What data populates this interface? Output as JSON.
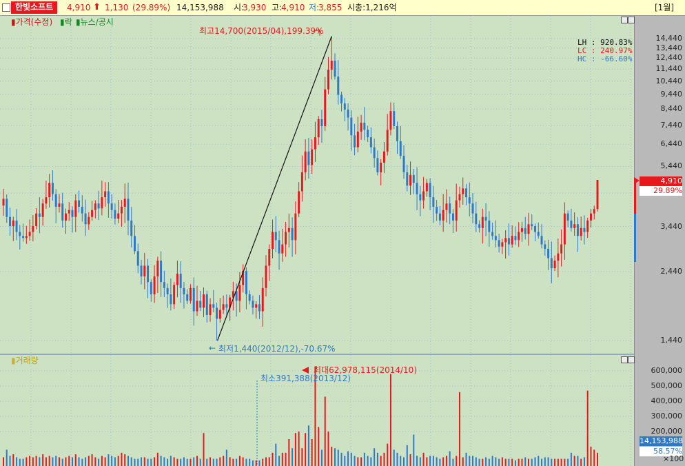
{
  "header": {
    "stock_name": "한빛소프트",
    "price": "4,910",
    "change_arrow": "up-arrow-icon",
    "change": "1,130",
    "change_pct": "(29.89%)",
    "volume": "14,153,988",
    "open_label": "시:",
    "open": "3,930",
    "high_label": "고:",
    "high": "4,910",
    "low_label": "저:",
    "low": "3,855",
    "mcap": "시총:1,216억",
    "period": "[1월]"
  },
  "colors": {
    "up": "#e8191e",
    "down": "#2d78c9",
    "panel_bg": "#cde2c3",
    "axis_bg": "#b9b9b9",
    "grid": "#9fc0d2",
    "titlebar": "#ffffcc",
    "name_bg": "#e8191e"
  },
  "price_panel": {
    "legend": [
      "가격(수정)",
      "락",
      "뉴스/공시"
    ],
    "stats": {
      "lh": "LH : 920.83%",
      "lc": "LC : 240.97%",
      "hc": "HC : -66.60%"
    },
    "max_annotation": "최고14,700(2015/04),199.39%",
    "min_annotation": "최저1,440(2012/12),-70.67%",
    "y_ticks": [
      "14,440",
      "13,440",
      "12,440",
      "11,440",
      "10,440",
      "9,440",
      "8,440",
      "7,440",
      "6,440",
      "5,440",
      "4,440",
      "3,440",
      "2,440",
      "1,440"
    ],
    "current_price_tag": "4,910",
    "current_pct_tag": "29.89%"
  },
  "volume_panel": {
    "legend": "거래량",
    "max_annotation": "최대62,978,115(2014/10)",
    "min_annotation": "최소391,388(2013/12)",
    "y_ticks": [
      "600,000",
      "500,000",
      "400,000",
      "300,000",
      "200,000"
    ],
    "current_volume_tag": "14,153,988",
    "current_pct_tag": "58.57%",
    "unit": "×100"
  },
  "chart_data": [
    {
      "type": "candlestick",
      "interval": "monthly",
      "title": "",
      "y_scale": "log",
      "ylim": [
        1200,
        16000
      ],
      "y_ticks": [
        14440,
        13440,
        12440,
        11440,
        10440,
        9440,
        8440,
        7440,
        6440,
        5440,
        4440,
        3440,
        2440,
        1440
      ],
      "annotations": [
        {
          "text": "최고14,700(2015/04),199.39%",
          "date": "2015/04",
          "value": 14700
        },
        {
          "text": "최저1,440(2012/12),-70.67%",
          "date": "2012/12",
          "value": 1440
        }
      ],
      "last": {
        "open": 3930,
        "high": 4910,
        "low": 3855,
        "close": 4910,
        "change": 1130,
        "change_pct": 29.89
      },
      "closes_approx": [
        4250,
        3700,
        3450,
        3600,
        3300,
        3200,
        3150,
        3200,
        3300,
        3450,
        3800,
        3700,
        4100,
        4300,
        4800,
        4400,
        4000,
        4100,
        3600,
        3800,
        3900,
        3700,
        4200,
        4000,
        3800,
        3500,
        3700,
        3900,
        4100,
        3950,
        4300,
        4500,
        4100,
        3900,
        3650,
        3800,
        4000,
        4250,
        3600,
        3200,
        2850,
        2550,
        2350,
        2550,
        2250,
        2050,
        2350,
        2650,
        2250,
        2150,
        2050,
        1900,
        2200,
        2400,
        2150,
        2050,
        1950,
        2150,
        1800,
        1950,
        1850,
        2050,
        1750,
        1900,
        1850,
        1700,
        1820,
        1900,
        1850,
        2000,
        2100,
        1950,
        2200,
        2450,
        2050,
        1950,
        1850,
        1900,
        1800,
        2150,
        2550,
        2900,
        3300,
        3100,
        2800,
        3000,
        3300,
        3400,
        3100,
        3800,
        4500,
        5200,
        6100,
        5500,
        6200,
        6800,
        7800,
        7400,
        9800,
        11400,
        12200,
        10800,
        9400,
        8800,
        8400,
        7900,
        6900,
        6300,
        7100,
        7600,
        7200,
        6800,
        6300,
        5800,
        5200,
        5600,
        6100,
        7200,
        8300,
        7400,
        6600,
        5900,
        5200,
        4700,
        5100,
        4800,
        4400,
        4200,
        4500,
        4800,
        4300,
        4000,
        3800,
        3600,
        3900,
        4100,
        3800,
        3600,
        4200,
        4400,
        4600,
        4300,
        4100,
        3800,
        3500,
        3400,
        3700,
        3600,
        3300,
        3200,
        3100,
        2950,
        3050,
        3150,
        3000,
        3200,
        3100,
        3300,
        3400,
        3250,
        3500,
        3450,
        3300,
        3200,
        3000,
        2900,
        2700,
        2500,
        2650,
        2800,
        3000,
        3800,
        3600,
        3400,
        3500,
        3200,
        3400,
        3300,
        3600,
        3800,
        3930,
        4910
      ]
    },
    {
      "type": "bar",
      "series": [
        {
          "name": "거래량",
          "unit": "×100"
        }
      ],
      "y_ticks": [
        600000,
        500000,
        400000,
        300000,
        200000
      ],
      "annotations": [
        {
          "text": "최대62,978,115(2014/10)",
          "date": "2014/10",
          "value": 62978115
        },
        {
          "text": "최소391,388(2013/12)",
          "date": "2013/12",
          "value": 391388
        }
      ],
      "last_value": 14153988,
      "last_pct": 58.57,
      "values_x100_approx": [
        30000,
        80000,
        40000,
        50000,
        30000,
        20000,
        20000,
        30000,
        40000,
        30000,
        40000,
        30000,
        50000,
        30000,
        40000,
        30000,
        40000,
        30000,
        20000,
        30000,
        40000,
        30000,
        50000,
        30000,
        20000,
        30000,
        40000,
        50000,
        30000,
        20000,
        40000,
        30000,
        50000,
        40000,
        30000,
        40000,
        60000,
        50000,
        40000,
        30000,
        20000,
        20000,
        30000,
        30000,
        20000,
        20000,
        30000,
        60000,
        40000,
        30000,
        20000,
        40000,
        30000,
        20000,
        20000,
        30000,
        20000,
        20000,
        30000,
        40000,
        20000,
        190000,
        20000,
        30000,
        20000,
        20000,
        30000,
        40000,
        80000,
        30000,
        20000,
        20000,
        40000,
        30000,
        20000,
        20000,
        10000,
        10000,
        10000,
        20000,
        30000,
        30000,
        60000,
        120000,
        40000,
        60000,
        60000,
        150000,
        90000,
        190000,
        200000,
        90000,
        190000,
        240000,
        150000,
        629781,
        230000,
        80000,
        430000,
        200000,
        100000,
        90000,
        80000,
        60000,
        40000,
        70000,
        60000,
        40000,
        30000,
        30000,
        60000,
        40000,
        30000,
        90000,
        60000,
        40000,
        60000,
        120000,
        580000,
        80000,
        60000,
        40000,
        30000,
        110000,
        50000,
        180000,
        40000,
        30000,
        60000,
        30000,
        40000,
        40000,
        30000,
        20000,
        30000,
        40000,
        70000,
        20000,
        40000,
        460000,
        30000,
        60000,
        40000,
        40000,
        30000,
        20000,
        20000,
        30000,
        20000,
        40000,
        30000,
        20000,
        30000,
        20000,
        20000,
        20000,
        10000,
        20000,
        20000,
        30000,
        20000,
        20000,
        30000,
        40000,
        20000,
        30000,
        30000,
        20000,
        20000,
        20000,
        20000,
        20000,
        20000,
        60000,
        40000,
        40000,
        20000,
        30000,
        470000,
        100000,
        80000,
        60000,
        90000,
        60000,
        140000
      ]
    }
  ]
}
